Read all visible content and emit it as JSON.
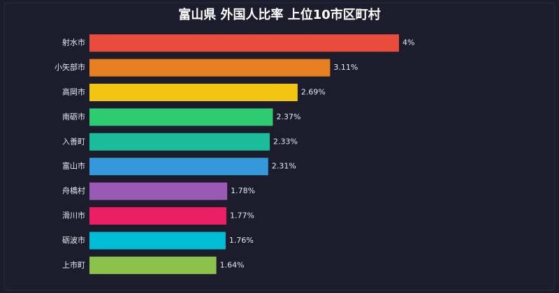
{
  "chart_data": {
    "type": "hbar",
    "title": "富山県 外国人比率 上位10市区町村",
    "categories": [
      "射水市",
      "小矢部市",
      "高岡市",
      "南砺市",
      "入善町",
      "富山市",
      "舟橋村",
      "滑川市",
      "砺波市",
      "上市町"
    ],
    "values": [
      4,
      3.11,
      2.69,
      2.37,
      2.33,
      2.31,
      1.78,
      1.77,
      1.76,
      1.64
    ],
    "value_labels": [
      "4%",
      "3.11%",
      "2.69%",
      "2.37%",
      "2.33%",
      "2.31%",
      "1.78%",
      "1.77%",
      "1.76%",
      "1.64%"
    ],
    "colors": [
      "#e74c3c",
      "#e67e22",
      "#f1c40f",
      "#2ecc71",
      "#1abc9c",
      "#3498db",
      "#9b59b6",
      "#e91e63",
      "#00bcd4",
      "#8bc34a"
    ]
  }
}
